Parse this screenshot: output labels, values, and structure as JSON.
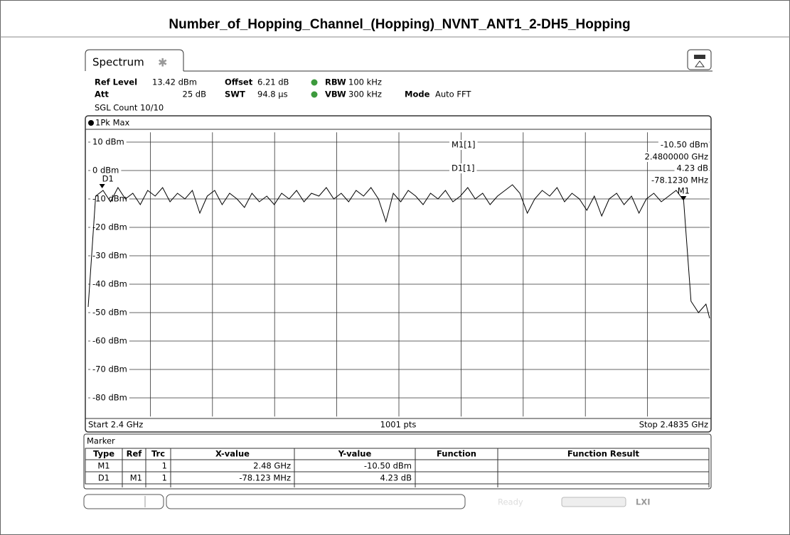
{
  "title": "Number_of_Hopping_Channel_(Hopping)_NVNT_ANT1_2-DH5_Hopping",
  "tab": "Spectrum",
  "settings": {
    "ref_level": {
      "label": "Ref Level",
      "value": "13.42 dBm"
    },
    "offset": {
      "label": "Offset",
      "value": "6.21 dB"
    },
    "rbw": {
      "label": "RBW",
      "value": "100 kHz"
    },
    "att": {
      "label": "Att",
      "value": "25 dB"
    },
    "swt": {
      "label": "SWT",
      "value": "94.8 µs"
    },
    "vbw": {
      "label": "VBW",
      "value": "300 kHz"
    },
    "mode": {
      "label": "Mode",
      "value": "Auto FFT"
    },
    "count": "SGL Count 10/10"
  },
  "chart_data": {
    "type": "line",
    "x": [
      2.4,
      2.401,
      2.402,
      2.403,
      2.404,
      2.405,
      2.406,
      2.407,
      2.408,
      2.409,
      2.41,
      2.411,
      2.412,
      2.413,
      2.414,
      2.415,
      2.416,
      2.417,
      2.418,
      2.419,
      2.42,
      2.421,
      2.422,
      2.423,
      2.424,
      2.425,
      2.426,
      2.427,
      2.428,
      2.429,
      2.43,
      2.431,
      2.432,
      2.433,
      2.434,
      2.435,
      2.436,
      2.437,
      2.438,
      2.439,
      2.44,
      2.441,
      2.442,
      2.443,
      2.444,
      2.445,
      2.446,
      2.447,
      2.448,
      2.449,
      2.45,
      2.451,
      2.452,
      2.453,
      2.454,
      2.455,
      2.456,
      2.457,
      2.458,
      2.459,
      2.46,
      2.461,
      2.462,
      2.463,
      2.464,
      2.465,
      2.466,
      2.467,
      2.468,
      2.469,
      2.47,
      2.471,
      2.472,
      2.473,
      2.474,
      2.475,
      2.476,
      2.477,
      2.478,
      2.479,
      2.48,
      2.481,
      2.482,
      2.483,
      2.4835
    ],
    "series": [
      {
        "name": "1Pk Max",
        "color": "#000000",
        "values": [
          -48,
          -9,
          -7,
          -11,
          -6,
          -10,
          -8,
          -12,
          -7,
          -9,
          -6,
          -11,
          -8,
          -10,
          -7,
          -15,
          -9,
          -7,
          -12,
          -8,
          -10,
          -13,
          -8,
          -11,
          -9,
          -12,
          -8,
          -10,
          -7,
          -11,
          -8,
          -9,
          -6,
          -10,
          -8,
          -11,
          -7,
          -9,
          -6,
          -10,
          -18,
          -8,
          -11,
          -7,
          -9,
          -12,
          -8,
          -10,
          -7,
          -11,
          -9,
          -6,
          -10,
          -8,
          -12,
          -9,
          -7,
          -5,
          -8,
          -15,
          -10,
          -7,
          -9,
          -6,
          -11,
          -8,
          -10,
          -14,
          -9,
          -16,
          -10,
          -8,
          -12,
          -9,
          -15,
          -10,
          -8,
          -11,
          -9,
          -7,
          -10.5,
          -46,
          -50,
          -47,
          -52
        ]
      }
    ],
    "xlim": [
      2.4,
      2.4835
    ],
    "xticks": [
      2.40835,
      2.4167,
      2.42505,
      2.4334,
      2.44175,
      2.4501,
      2.45845,
      2.4668,
      2.47515
    ],
    "ylim": [
      -86.58,
      13.42
    ],
    "yticks": [
      {
        "value": 10,
        "label": "10 dBm"
      },
      {
        "value": 0,
        "label": "0 dBm"
      },
      {
        "value": -10,
        "label": "-10 dBm"
      },
      {
        "value": -20,
        "label": "-20 dBm"
      },
      {
        "value": -30,
        "label": "-30 dBm"
      },
      {
        "value": -40,
        "label": "-40 dBm"
      },
      {
        "value": -50,
        "label": "-50 dBm"
      },
      {
        "value": -60,
        "label": "-60 dBm"
      },
      {
        "value": -70,
        "label": "-70 dBm"
      },
      {
        "value": -80,
        "label": "-80 dBm"
      }
    ],
    "grid": true,
    "markers": [
      {
        "name": "M1",
        "x": 2.48,
        "y": -10.5
      },
      {
        "name": "D1",
        "x": 2.401877,
        "y": -6.27
      }
    ],
    "marker_info": [
      {
        "name": "M1[1]",
        "lines": [
          "-10.50 dBm",
          "2.4800000 GHz"
        ]
      },
      {
        "name": "D1[1]",
        "lines": [
          "4.23 dB",
          "-78.1230 MHz"
        ]
      }
    ],
    "start": "Start 2.4 GHz",
    "points": "1001 pts",
    "stop": "Stop 2.4835 GHz"
  },
  "marker_table": {
    "title": "Marker",
    "columns": [
      "Type",
      "Ref",
      "Trc",
      "X-value",
      "Y-value",
      "Function",
      "Function Result"
    ],
    "rows": [
      {
        "type": "M1",
        "trc": "1",
        "x_value": "2.48 GHz",
        "y_value": "-10.50 dBm"
      },
      {
        "type": "D1",
        "ref": "M1",
        "trc": "1",
        "x_value": "-78.123 MHz",
        "y_value": "4.23 dB"
      }
    ]
  },
  "status": "Ready"
}
